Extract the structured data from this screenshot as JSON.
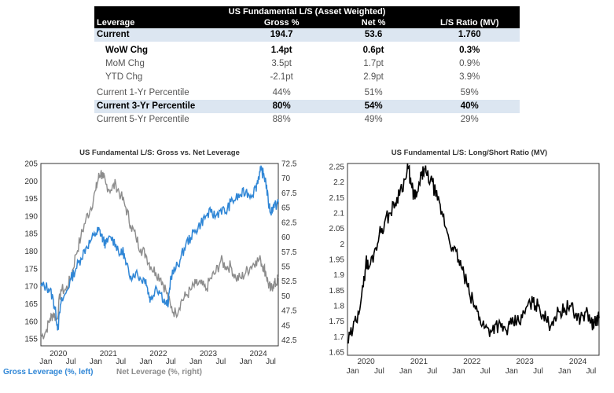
{
  "table": {
    "title": "US Fundamental L/S (Asset Weighted)",
    "headers": [
      "Leverage",
      "Gross %",
      "Net %",
      "L/S Ratio (MV)"
    ],
    "rows": [
      {
        "label": "Current",
        "gross": "194.7",
        "net": "53.6",
        "ratio": "1.760",
        "style": "hl bold"
      },
      {
        "label": "WoW Chg",
        "gross": "1.4pt",
        "net": "0.6pt",
        "ratio": "0.3%",
        "style": "bold indent"
      },
      {
        "label": "MoM Chg",
        "gross": "3.5pt",
        "net": "1.7pt",
        "ratio": "0.9%",
        "style": "muted indent"
      },
      {
        "label": "YTD Chg",
        "gross": "-2.1pt",
        "net": "2.9pt",
        "ratio": "3.9%",
        "style": "muted indent",
        "gross_negative": true
      },
      {
        "label": "Current 1-Yr Percentile",
        "gross": "44%",
        "net": "51%",
        "ratio": "59%",
        "style": "muted"
      },
      {
        "label": "Current 3-Yr Percentile",
        "gross": "80%",
        "net": "54%",
        "ratio": "40%",
        "style": "hl bold"
      },
      {
        "label": "Current 5-Yr Percentile",
        "gross": "88%",
        "net": "49%",
        "ratio": "29%",
        "style": "muted"
      }
    ]
  },
  "colors": {
    "gross": "#2f86d6",
    "net": "#8c8c8c",
    "ratio": "#000000"
  },
  "chart_data": [
    {
      "type": "line",
      "title": "US Fundamental L/S: Gross vs. Net Leverage",
      "xlabel": "",
      "ylabel": "",
      "x_year_labels": [
        "2020",
        "2021",
        "2022",
        "2023",
        "2024"
      ],
      "x_month_labels": [
        "Jan",
        "Jul",
        "Jan",
        "Jul",
        "Jan",
        "Jul",
        "Jan",
        "Jul",
        "Jan",
        "Jul"
      ],
      "x_range": [
        2019.9,
        2024.65
      ],
      "y_left": {
        "ticks": [
          155,
          160,
          165,
          170,
          175,
          180,
          185,
          190,
          195,
          200,
          205
        ],
        "ylim": [
          153,
          205
        ]
      },
      "y_right": {
        "ticks": [
          "42.5",
          "45",
          "47.5",
          "50",
          "52.5",
          "55",
          "57.5",
          "60",
          "62.5",
          "65",
          "67.5",
          "70",
          "72.5"
        ],
        "ylim": [
          41.5,
          72.5
        ]
      },
      "grid": false,
      "series": [
        {
          "name": "Gross Leverage (%, left)",
          "axis": "left",
          "x": [
            2019.9,
            2020.0,
            2020.08,
            2020.15,
            2020.2,
            2020.24,
            2020.3,
            2020.4,
            2020.5,
            2020.6,
            2020.7,
            2020.8,
            2020.9,
            2021.0,
            2021.05,
            2021.1,
            2021.15,
            2021.2,
            2021.3,
            2021.4,
            2021.5,
            2021.55,
            2021.6,
            2021.7,
            2021.8,
            2021.9,
            2022.0,
            2022.05,
            2022.1,
            2022.2,
            2022.3,
            2022.4,
            2022.45,
            2022.5,
            2022.6,
            2022.7,
            2022.8,
            2022.9,
            2023.0,
            2023.1,
            2023.2,
            2023.3,
            2023.4,
            2023.5,
            2023.6,
            2023.7,
            2023.8,
            2023.9,
            2024.0,
            2024.1,
            2024.2,
            2024.25,
            2024.3,
            2024.35,
            2024.4,
            2024.45,
            2024.5,
            2024.55,
            2024.6,
            2024.65
          ],
          "values": [
            170,
            170,
            169,
            166,
            162,
            158,
            165,
            168,
            172,
            175,
            178,
            181,
            183,
            185,
            186,
            185,
            183,
            182,
            184,
            182,
            179,
            180,
            176,
            173,
            174,
            172,
            172,
            168,
            166,
            170,
            168,
            165,
            165,
            173,
            175,
            178,
            182,
            184,
            186,
            188,
            190,
            191,
            190,
            192,
            191,
            194,
            195,
            196,
            197,
            196,
            198,
            201,
            203,
            202,
            200,
            194,
            191,
            193,
            193,
            194
          ]
        },
        {
          "name": "Net Leverage (%, right)",
          "axis": "right",
          "x": [
            2019.9,
            2020.0,
            2020.08,
            2020.15,
            2020.22,
            2020.3,
            2020.4,
            2020.5,
            2020.6,
            2020.7,
            2020.8,
            2020.9,
            2021.0,
            2021.05,
            2021.1,
            2021.15,
            2021.2,
            2021.3,
            2021.4,
            2021.5,
            2021.6,
            2021.7,
            2021.8,
            2021.9,
            2022.0,
            2022.1,
            2022.2,
            2022.3,
            2022.4,
            2022.5,
            2022.6,
            2022.7,
            2022.8,
            2022.9,
            2023.0,
            2023.1,
            2023.2,
            2023.3,
            2023.4,
            2023.5,
            2023.6,
            2023.7,
            2023.8,
            2023.9,
            2024.0,
            2024.1,
            2024.2,
            2024.3,
            2024.35,
            2024.4,
            2024.45,
            2024.5,
            2024.55,
            2024.6,
            2024.65
          ],
          "values": [
            43,
            44,
            46,
            47,
            46,
            51,
            51,
            53,
            57,
            60,
            63,
            65,
            68,
            70,
            71,
            70,
            69,
            68,
            69,
            67,
            65,
            62,
            60,
            58,
            57,
            55,
            54,
            53,
            51,
            48,
            47,
            49,
            50,
            51,
            52,
            52,
            51,
            53,
            54,
            56,
            55,
            55,
            53,
            53,
            54,
            55,
            56,
            56,
            55,
            54,
            52,
            51,
            52,
            52,
            53
          ]
        }
      ]
    },
    {
      "type": "line",
      "title": "US Fundamental L/S: Long/Short Ratio (MV)",
      "xlabel": "",
      "ylabel": "",
      "x_year_labels": [
        "2020",
        "2021",
        "2022",
        "2023",
        "2024"
      ],
      "x_month_labels": [
        "Jan",
        "Jul",
        "Jan",
        "Jul",
        "Jan",
        "Jul",
        "Jan",
        "Jul",
        "Jan",
        "Jul"
      ],
      "x_range": [
        2019.9,
        2024.65
      ],
      "y_left": {
        "ticks": [
          "1.65",
          "1.7",
          "1.75",
          "1.8",
          "1.85",
          "1.9",
          "1.95",
          "2",
          "2.05",
          "2.1",
          "2.15",
          "2.2",
          "2.25"
        ],
        "ylim": [
          1.64,
          2.26
        ]
      },
      "grid": false,
      "series": [
        {
          "name": "",
          "axis": "left",
          "x": [
            2019.9,
            2020.0,
            2020.1,
            2020.2,
            2020.25,
            2020.3,
            2020.4,
            2020.5,
            2020.6,
            2020.7,
            2020.8,
            2020.9,
            2021.0,
            2021.05,
            2021.1,
            2021.15,
            2021.2,
            2021.3,
            2021.35,
            2021.4,
            2021.5,
            2021.6,
            2021.7,
            2021.8,
            2021.9,
            2022.0,
            2022.1,
            2022.2,
            2022.3,
            2022.4,
            2022.5,
            2022.6,
            2022.7,
            2022.8,
            2022.9,
            2023.0,
            2023.1,
            2023.2,
            2023.3,
            2023.4,
            2023.5,
            2023.6,
            2023.7,
            2023.8,
            2023.9,
            2024.0,
            2024.1,
            2024.2,
            2024.3,
            2024.4,
            2024.5,
            2024.55,
            2024.6,
            2024.65
          ],
          "values": [
            1.68,
            1.72,
            1.78,
            1.86,
            1.95,
            1.92,
            1.97,
            2.03,
            2.07,
            2.1,
            2.13,
            2.18,
            2.21,
            2.25,
            2.19,
            2.16,
            2.15,
            2.22,
            2.24,
            2.22,
            2.2,
            2.14,
            2.09,
            2.03,
            1.98,
            1.95,
            1.9,
            1.84,
            1.8,
            1.76,
            1.73,
            1.72,
            1.74,
            1.73,
            1.72,
            1.74,
            1.75,
            1.76,
            1.8,
            1.81,
            1.8,
            1.77,
            1.74,
            1.76,
            1.78,
            1.79,
            1.8,
            1.77,
            1.76,
            1.78,
            1.75,
            1.73,
            1.76,
            1.76
          ]
        }
      ]
    }
  ]
}
